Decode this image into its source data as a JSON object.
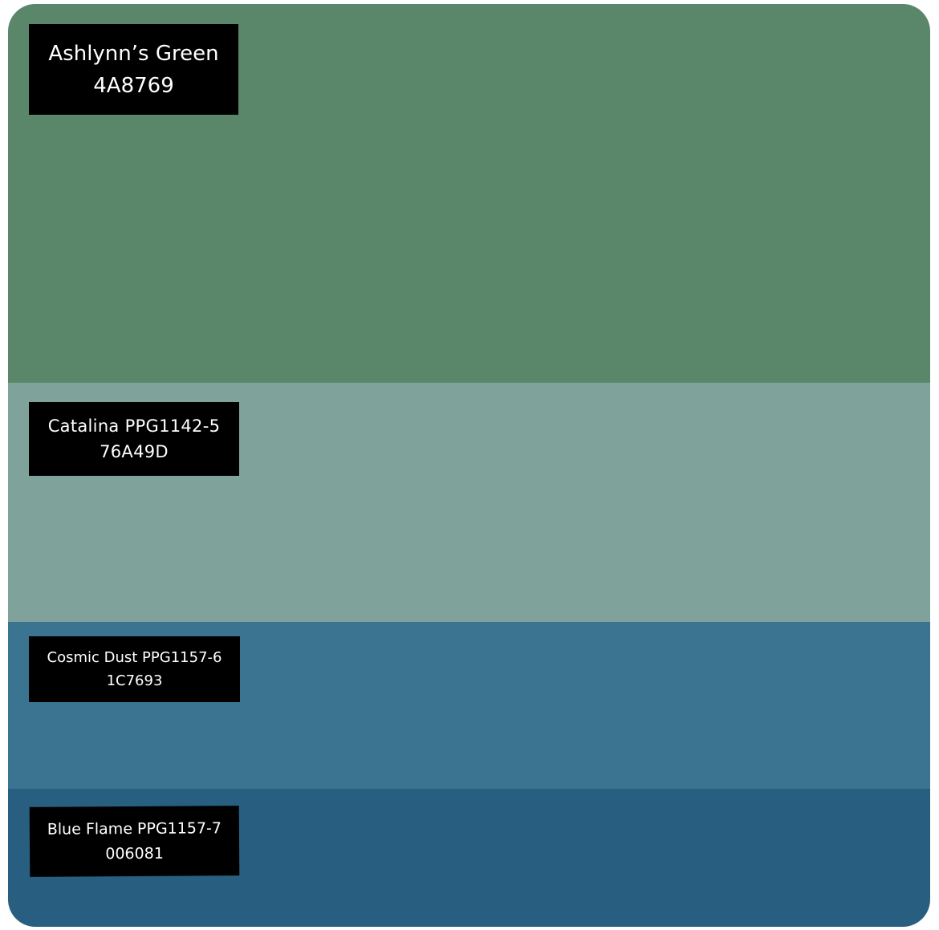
{
  "swatches": [
    {
      "name": "Ashlynn’s Green",
      "code": "4A8769",
      "color": "#5a8669"
    },
    {
      "name": "Catalina PPG1142-5",
      "code": "76A49D",
      "color": "#7fa39a"
    },
    {
      "name": "Cosmic Dust PPG1157-6",
      "code": "1C7693",
      "color": "#3a7491"
    },
    {
      "name": "Blue Flame PPG1157-7",
      "code": "006081",
      "color": "#285f80"
    }
  ]
}
